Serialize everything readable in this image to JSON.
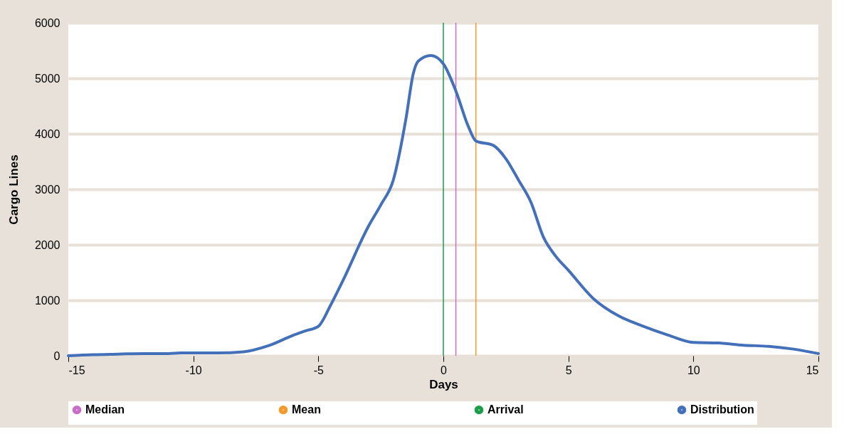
{
  "chart_data": {
    "type": "line",
    "xlabel": "Days",
    "ylabel": "Cargo Lines",
    "x": [
      -15,
      -14,
      -13,
      -12,
      -11,
      -10.5,
      -9,
      -8,
      -7,
      -6,
      -5.5,
      -5,
      -4.5,
      -4,
      -3,
      -2.5,
      -2,
      -1.5,
      -1.2,
      -1,
      -0.5,
      0,
      0.5,
      1,
      1.3,
      2,
      2.5,
      3,
      3.5,
      4,
      4.5,
      5,
      6,
      7,
      8,
      9,
      10,
      11,
      12,
      13,
      14,
      15
    ],
    "series": [
      {
        "name": "Distribution",
        "color": "#4470b9",
        "values": [
          0,
          20,
          30,
          40,
          40,
          50,
          50,
          70,
          180,
          370,
          450,
          530,
          920,
          1370,
          2330,
          2720,
          3170,
          4260,
          5090,
          5310,
          5410,
          5260,
          4770,
          4130,
          3870,
          3790,
          3550,
          3170,
          2770,
          2140,
          1790,
          1540,
          1030,
          720,
          530,
          370,
          240,
          230,
          190,
          170,
          120,
          40
        ]
      }
    ],
    "ref_lines": [
      {
        "axis": "x",
        "value": 0.5,
        "label": "Median",
        "color": "#c86ec8"
      },
      {
        "axis": "x",
        "value": 1.3,
        "label": "Mean",
        "color": "#f39a2b"
      },
      {
        "axis": "x",
        "value": 0,
        "label": "Arrival",
        "color": "#1a9e4a"
      }
    ],
    "xlim": [
      -15,
      15
    ],
    "xticks": [
      -15,
      -10,
      -5,
      0,
      5,
      10,
      15
    ],
    "ylim": [
      0,
      6000
    ],
    "yticks": [
      0,
      1000,
      2000,
      3000,
      4000,
      5000,
      6000
    ],
    "grid": "y",
    "legend": "bottom"
  }
}
